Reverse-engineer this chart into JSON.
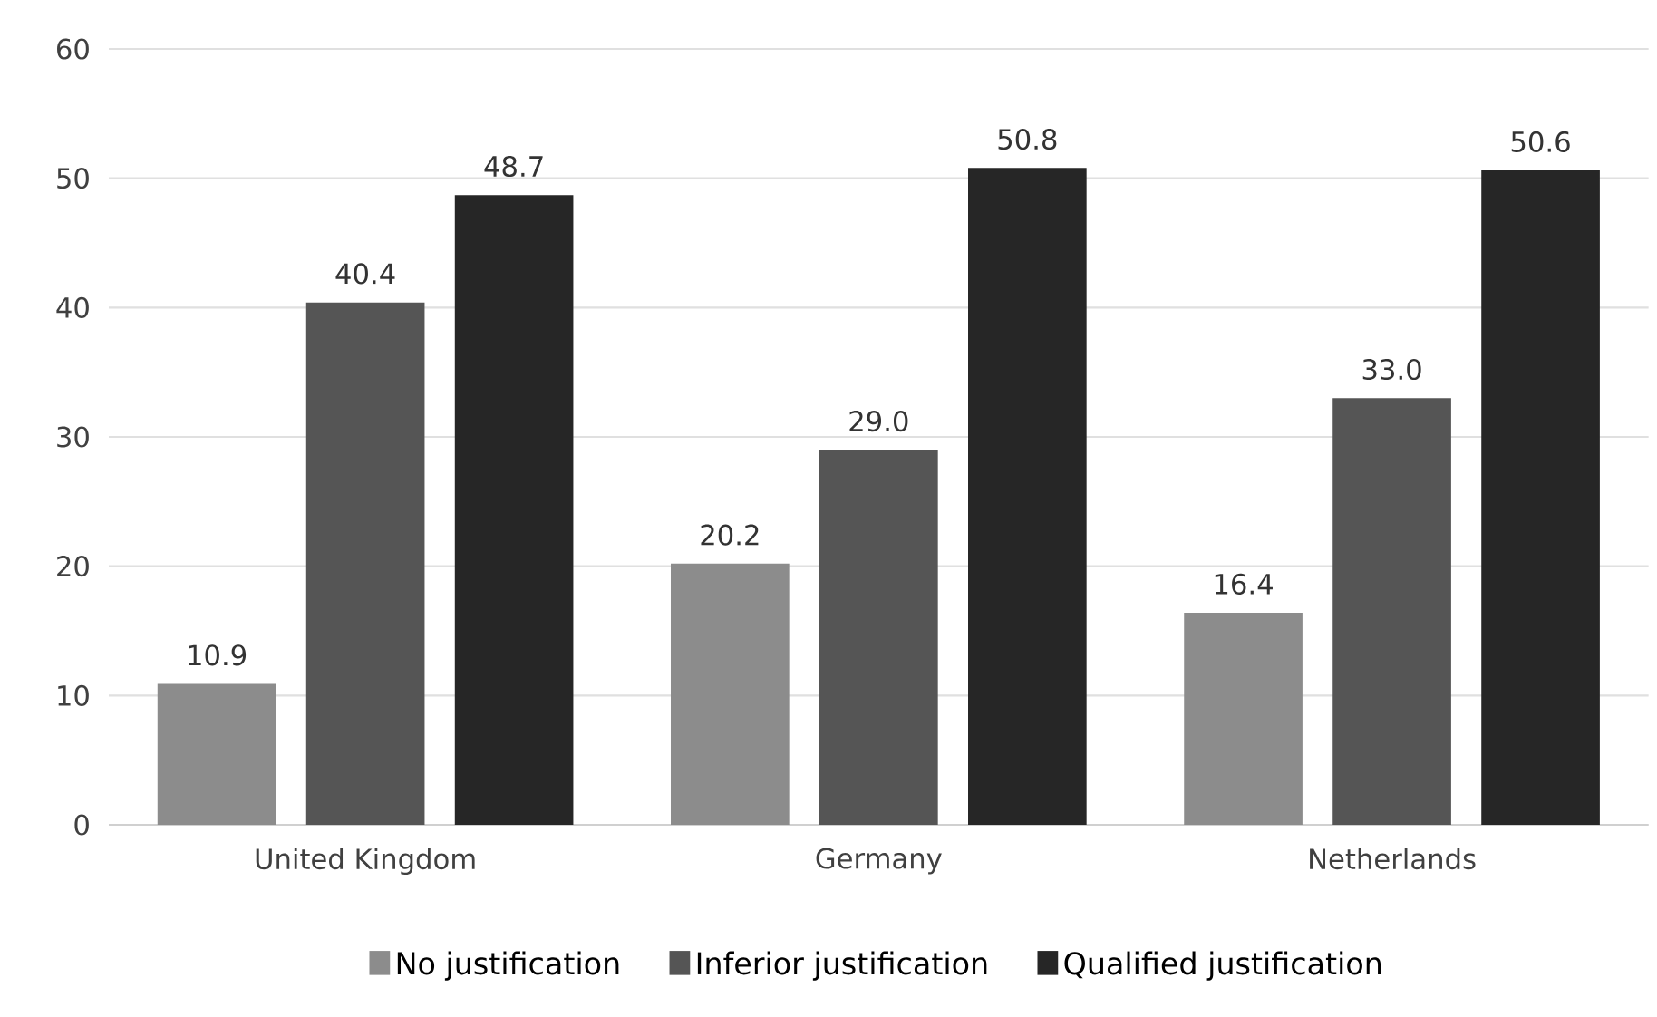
{
  "chart_data": {
    "type": "bar",
    "categories": [
      "United Kingdom",
      "Germany",
      "Netherlands"
    ],
    "series": [
      {
        "name": "No justification",
        "color": "#8c8c8c",
        "values": [
          10.9,
          20.2,
          16.4
        ],
        "value_labels": [
          "10.9",
          "20.2",
          "16.4"
        ]
      },
      {
        "name": "Inferior justification",
        "color": "#555555",
        "values": [
          40.4,
          29.0,
          33.0
        ],
        "value_labels": [
          "40.4",
          "29.0",
          "33.0"
        ]
      },
      {
        "name": "Qualified justification",
        "color": "#262626",
        "values": [
          48.7,
          50.8,
          50.6
        ],
        "value_labels": [
          "48.7",
          "50.8",
          "50.6"
        ]
      }
    ],
    "ylim": [
      0,
      60
    ],
    "yticks": [
      0,
      10,
      20,
      30,
      40,
      50,
      60
    ],
    "grid": "y",
    "legend": "bottom"
  }
}
